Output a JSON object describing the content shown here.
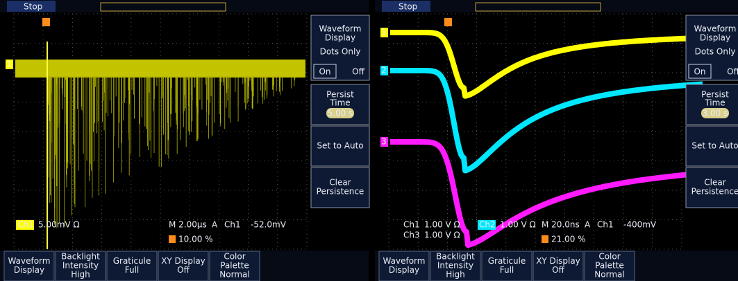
{
  "screens": [
    {
      "status": "Stop",
      "channel_markers": [
        "1"
      ],
      "side_menu": {
        "title": [
          "Waveform",
          "Display"
        ],
        "dots_only": "Dots Only",
        "on": "On",
        "off": "Off",
        "persist": [
          "Persist",
          "Time"
        ],
        "persist_value": "5.00 s",
        "set_auto": "Set to Auto",
        "clear": [
          "Clear",
          "Persistence"
        ]
      },
      "channels": [
        {
          "label": "Ch1",
          "scale": "5.00mV Ω"
        }
      ],
      "timebase": "M 2.00µs",
      "mode": "A",
      "trig_source": "Ch1",
      "trig_level": "-52.0mV",
      "trig_pos": "10.00 %",
      "bottom_menu": [
        [
          "Waveform",
          "Display"
        ],
        [
          "Backlight",
          "Intensity",
          "High"
        ],
        [
          "Graticule",
          "Full"
        ],
        [
          "XY Display",
          "Off"
        ],
        [
          "Color",
          "Palette",
          "Normal"
        ]
      ]
    },
    {
      "status": "Stop",
      "channel_markers": [
        "1",
        "2",
        "3"
      ],
      "side_menu": {
        "title": [
          "Waveform",
          "Display"
        ],
        "dots_only": "Dots Only",
        "on": "On",
        "off": "Off",
        "persist": [
          "Persist",
          "Time"
        ],
        "persist_value": "3.00 s",
        "set_auto": "Set to Auto",
        "clear": [
          "Clear",
          "Persistence"
        ]
      },
      "channels": [
        {
          "label": "Ch1",
          "scale": "1.00 V Ω"
        },
        {
          "label": "Ch2",
          "scale": "1.00 V Ω"
        },
        {
          "label": "Ch3",
          "scale": "1.00 V Ω"
        }
      ],
      "timebase": "M 20.0ns",
      "mode": "A",
      "trig_source": "Ch1",
      "trig_level": "-400mV",
      "trig_pos": "21.00 %",
      "bottom_menu": [
        [
          "Waveform",
          "Display"
        ],
        [
          "Backlight",
          "Intensity",
          "High"
        ],
        [
          "Graticule",
          "Full"
        ],
        [
          "XY Display",
          "Off"
        ],
        [
          "Color",
          "Palette",
          "Normal"
        ]
      ]
    }
  ]
}
